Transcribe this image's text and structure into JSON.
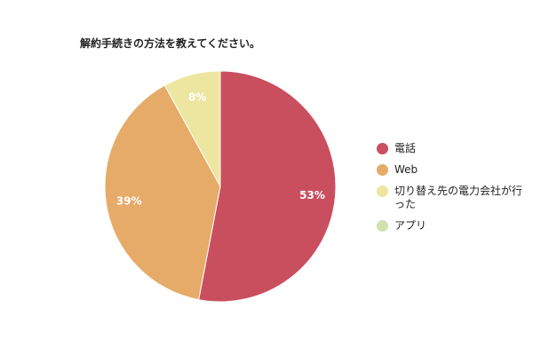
{
  "chart_data": {
    "type": "pie",
    "title": "解約手続きの方法を教えてください。",
    "categories": [
      "電話",
      "Web",
      "切り替え先の電力会社が行った",
      "アプリ"
    ],
    "values": [
      53,
      39,
      8,
      0
    ],
    "value_labels": [
      "53%",
      "39%",
      "8%",
      ""
    ],
    "colors": [
      "#c94f5f",
      "#e6ab68",
      "#ede6a0",
      "#d3e0b0"
    ],
    "legend_position": "right"
  }
}
